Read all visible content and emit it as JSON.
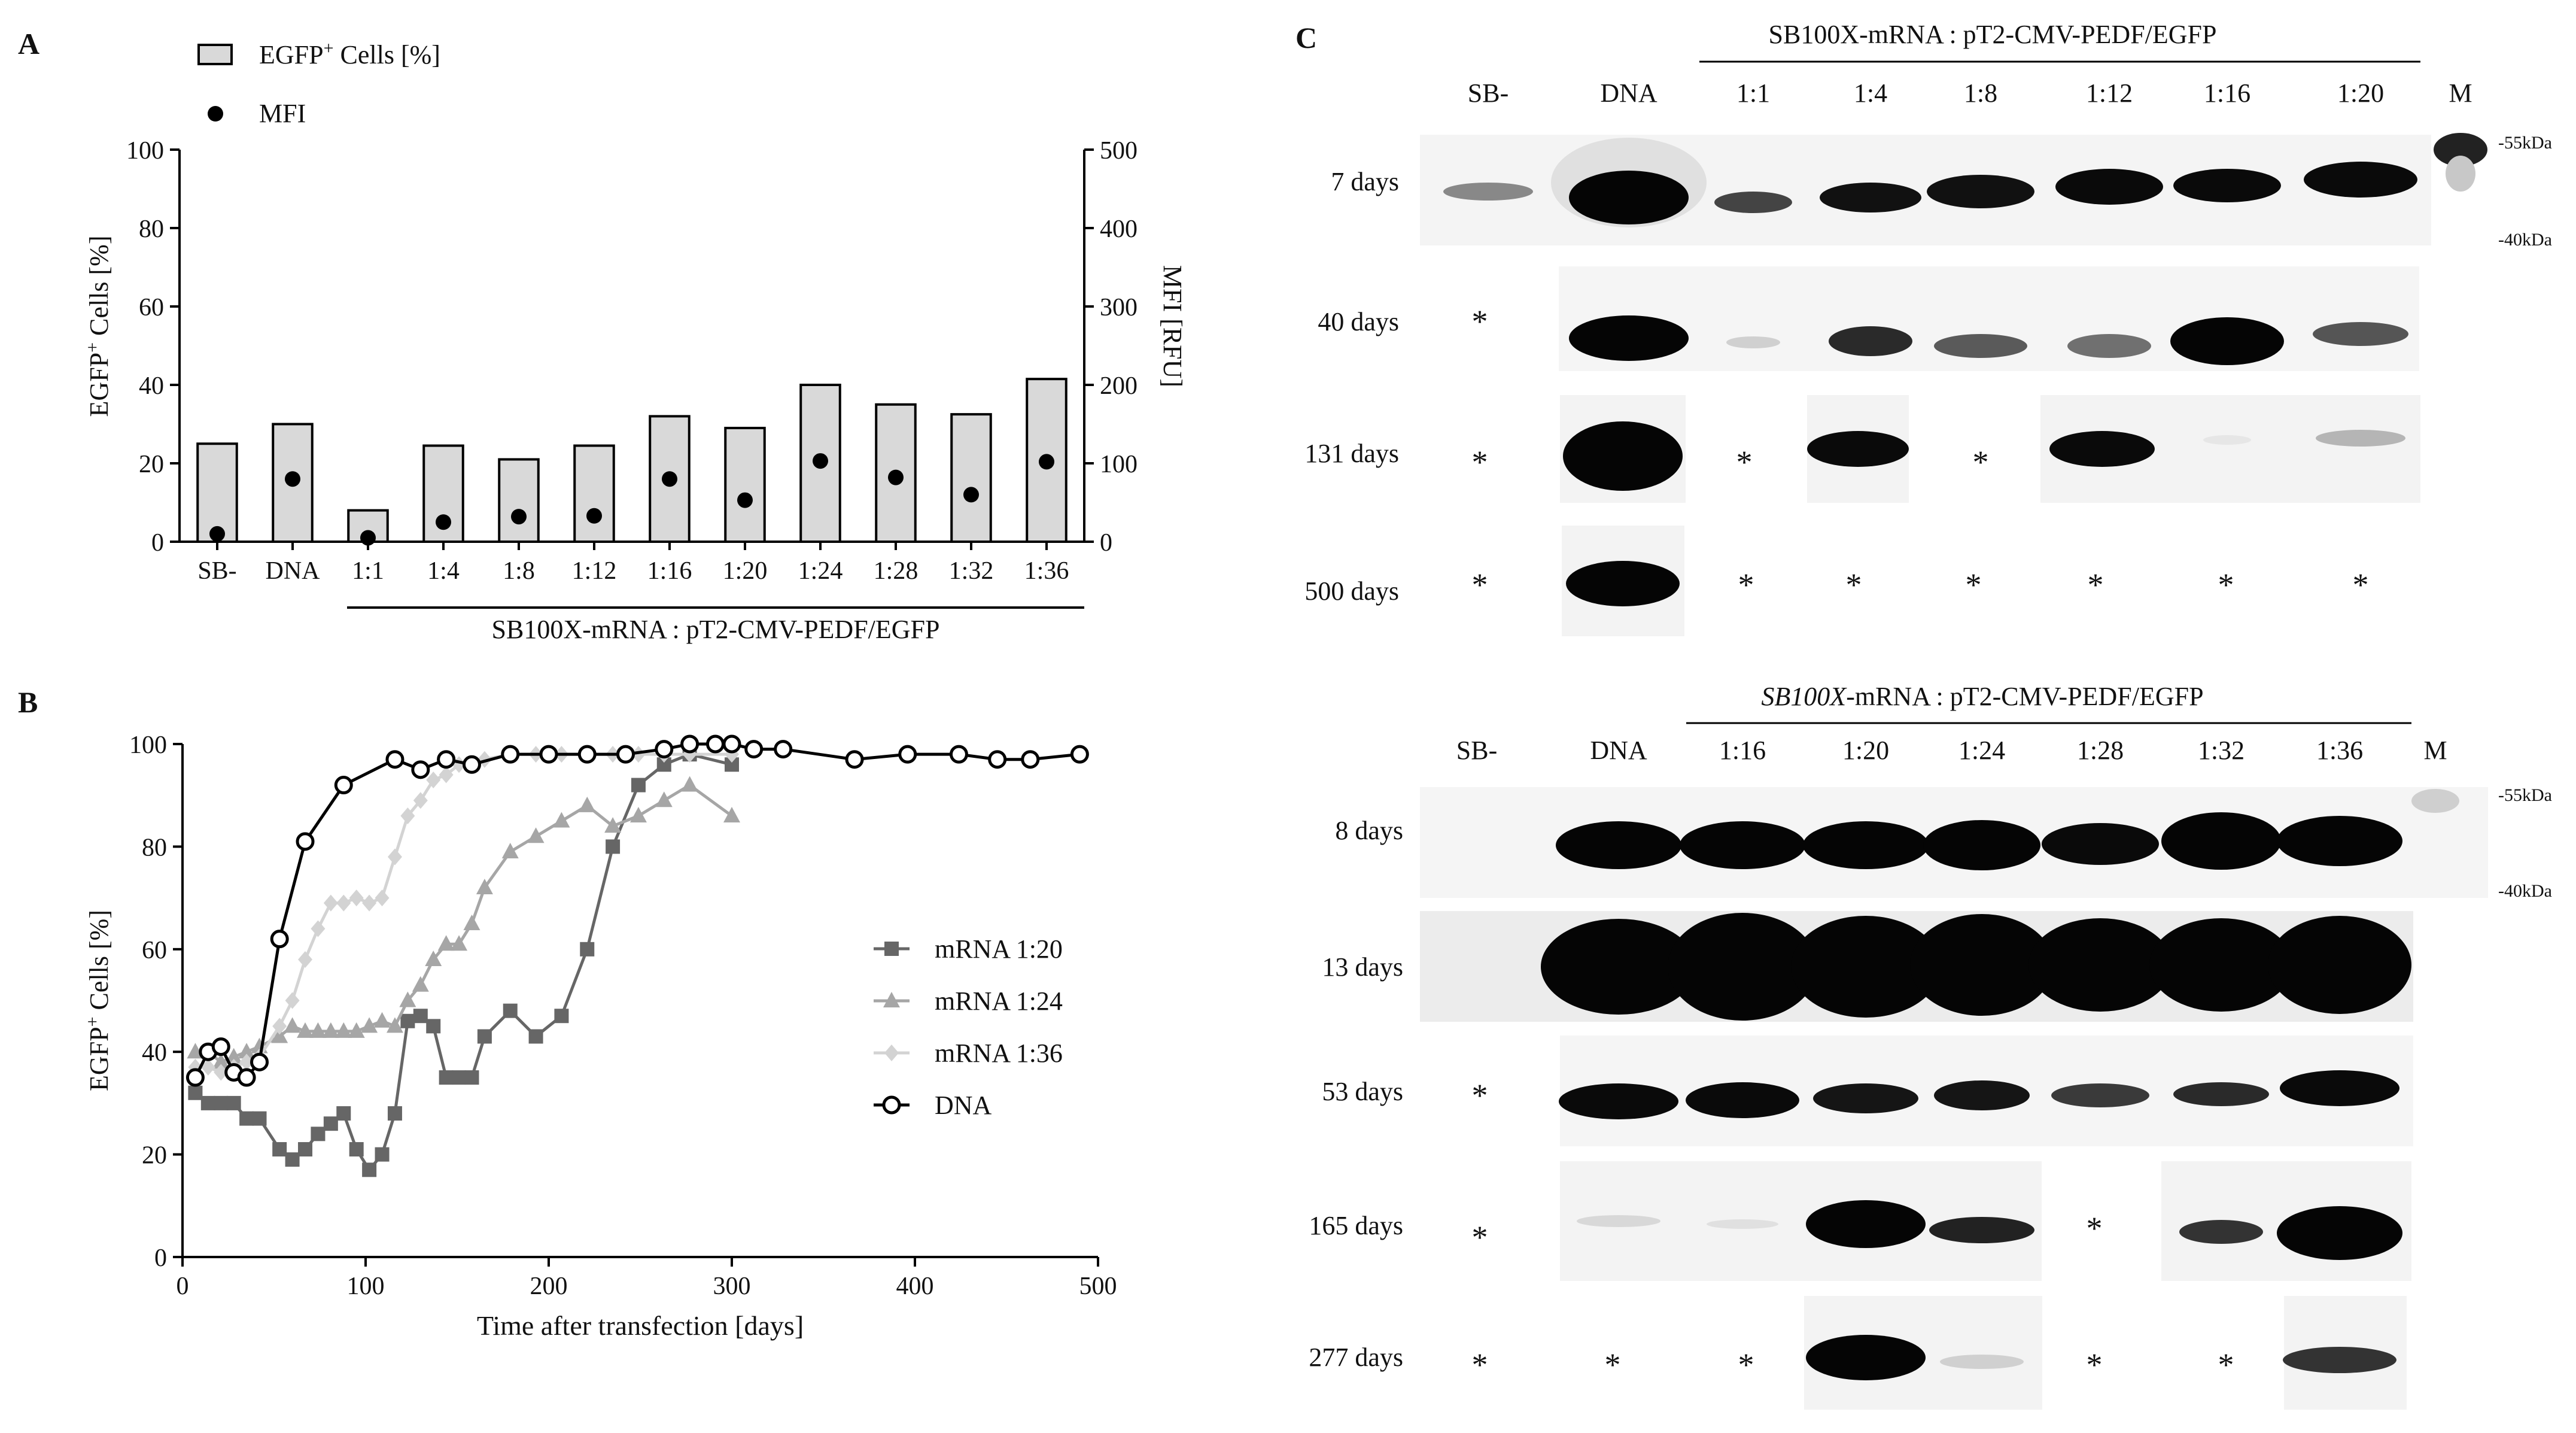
{
  "panels": {
    "A": {
      "letter": "A",
      "legend": [
        {
          "label_main": "EGFP",
          "label_sup": "+",
          "label_rest": " Cells [%]",
          "marker": "bar"
        },
        {
          "label_main": "MFI",
          "marker": "dot"
        }
      ],
      "bracket_label": "SB100X-mRNA : pT2-CMV-PEDF/EGFP",
      "ylabel_left_main": "EGFP",
      "ylabel_left_sup": "+",
      "ylabel_left_rest": " Cells [%]",
      "ylabel_right": "MFI [RFU]"
    },
    "B": {
      "letter": "B"
    },
    "C": {
      "letter": "C",
      "top": {
        "title": "SB100X-mRNA : pT2-CMV-PEDF/EGFP",
        "lanes": [
          "SB-",
          "DNA",
          "1:1",
          "1:4",
          "1:8",
          "1:12",
          "1:16",
          "1:20",
          "M"
        ],
        "rows": [
          "7 days",
          "40 days",
          "131 days",
          "500 days"
        ],
        "markers": [
          "-55kDa",
          "-40kDa"
        ]
      },
      "bottom": {
        "title_italic": "SB100X",
        "title_rest": "-mRNA : pT2-CMV-PEDF/EGFP",
        "lanes": [
          "SB-",
          "DNA",
          "1:16",
          "1:20",
          "1:24",
          "1:28",
          "1:32",
          "1:36",
          "M"
        ],
        "rows": [
          "8 days",
          "13 days",
          "53 days",
          "165 days",
          "277 days"
        ],
        "markers": [
          "-55kDa",
          "-40kDa"
        ]
      },
      "star": "*"
    }
  },
  "chart_data": [
    {
      "type": "bar",
      "panel": "A",
      "categories": [
        "SB-",
        "DNA",
        "1:1",
        "1:4",
        "1:8",
        "1:12",
        "1:16",
        "1:20",
        "1:24",
        "1:28",
        "1:32",
        "1:36"
      ],
      "series": [
        {
          "name": "EGFP+ Cells [%]",
          "axis": "left",
          "kind": "bar",
          "values": [
            25,
            30,
            8,
            24.5,
            21,
            24.5,
            32,
            29,
            40,
            35,
            32.5,
            41.5
          ]
        },
        {
          "name": "MFI",
          "axis": "right",
          "kind": "dot",
          "values": [
            10,
            80,
            5,
            25,
            32,
            33,
            80,
            53,
            103,
            82,
            60,
            102
          ]
        }
      ],
      "ylim_left": [
        0,
        100
      ],
      "yticks_left": [
        0,
        20,
        40,
        60,
        80,
        100
      ],
      "ylim_right": [
        0,
        500
      ],
      "yticks_right": [
        0,
        100,
        200,
        300,
        400,
        500
      ],
      "ylabel": "EGFP+ Cells [%]",
      "ylabel_right": "MFI [RFU]"
    },
    {
      "type": "line",
      "panel": "B",
      "xlabel": "Time after transfection [days]",
      "ylabel": "EGFP+ Cells [%]",
      "xlim": [
        0,
        500
      ],
      "xticks": [
        0,
        100,
        200,
        300,
        400,
        500
      ],
      "ylim": [
        0,
        100
      ],
      "yticks": [
        0,
        20,
        40,
        60,
        80,
        100
      ],
      "legend_position": "right",
      "series": [
        {
          "name": "mRNA 1:20",
          "color": "#666666",
          "marker": "square",
          "x": [
            7,
            14,
            21,
            28,
            35,
            42,
            53,
            60,
            67,
            74,
            81,
            88,
            95,
            102,
            109,
            116,
            123,
            130,
            137,
            144,
            151,
            158,
            165,
            179,
            193,
            207,
            221,
            235,
            249,
            263,
            277,
            300
          ],
          "y": [
            32,
            30,
            30,
            30,
            27,
            27,
            21,
            19,
            21,
            24,
            26,
            28,
            21,
            17,
            20,
            28,
            46,
            47,
            45,
            35,
            35,
            35,
            43,
            48,
            43,
            47,
            60,
            80,
            92,
            96,
            98,
            96
          ]
        },
        {
          "name": "mRNA 1:24",
          "color": "#a6a6a6",
          "marker": "triangle",
          "x": [
            7,
            14,
            21,
            28,
            35,
            42,
            53,
            60,
            67,
            74,
            81,
            88,
            95,
            102,
            109,
            116,
            123,
            130,
            137,
            144,
            151,
            158,
            165,
            179,
            193,
            207,
            221,
            235,
            249,
            263,
            277,
            300
          ],
          "y": [
            40,
            40,
            38,
            39,
            40,
            41,
            43,
            45,
            44,
            44,
            44,
            44,
            44,
            45,
            46,
            45,
            50,
            53,
            58,
            61,
            61,
            65,
            72,
            79,
            82,
            85,
            88,
            84,
            86,
            89,
            92,
            86
          ]
        },
        {
          "name": "mRNA 1:36",
          "color": "#d3d3d3",
          "marker": "diamond",
          "x": [
            7,
            14,
            21,
            28,
            35,
            42,
            53,
            60,
            67,
            74,
            81,
            88,
            95,
            102,
            109,
            116,
            123,
            130,
            137,
            144,
            151,
            158,
            165,
            179,
            193,
            207,
            221,
            235,
            249,
            263,
            277,
            300
          ],
          "y": [
            37,
            37,
            36,
            37,
            38,
            39,
            45,
            50,
            58,
            64,
            69,
            69,
            70,
            69,
            70,
            78,
            86,
            89,
            93,
            94,
            96,
            96,
            97,
            98,
            98,
            98,
            98,
            98,
            98,
            98,
            98,
            98
          ]
        },
        {
          "name": "DNA",
          "color": "#000000",
          "marker": "circle",
          "x": [
            7,
            14,
            21,
            28,
            35,
            42,
            53,
            67,
            88,
            116,
            130,
            144,
            158,
            179,
            200,
            221,
            242,
            263,
            277,
            291,
            300,
            312,
            328,
            367,
            396,
            424,
            445,
            463,
            490
          ],
          "y": [
            35,
            40,
            41,
            36,
            35,
            38,
            62,
            81,
            92,
            97,
            95,
            97,
            96,
            98,
            98,
            98,
            98,
            99,
            100,
            100,
            100,
            99,
            99,
            97,
            98,
            98,
            97,
            97,
            98
          ]
        }
      ]
    }
  ]
}
